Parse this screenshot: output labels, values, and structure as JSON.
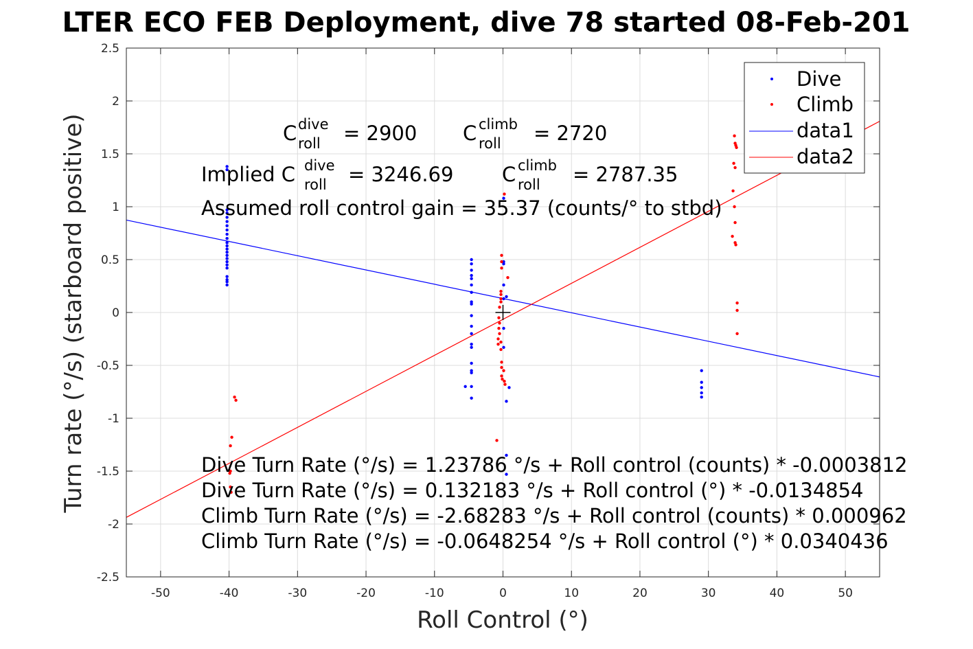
{
  "chart_data": {
    "type": "scatter",
    "title": "LTER ECO FEB Deployment, dive 78 started 08-Feb-201",
    "xlabel": "Roll Control (°)",
    "ylabel": "Turn rate (°/s) (starboard positive)",
    "xlim": [
      -55,
      55
    ],
    "ylim": [
      -2.5,
      2.5
    ],
    "xticks": [
      -50,
      -40,
      -30,
      -20,
      -10,
      0,
      10,
      20,
      30,
      40,
      50
    ],
    "yticks": [
      -2.5,
      -2,
      -1.5,
      -1,
      -0.5,
      0,
      0.5,
      1,
      1.5,
      2,
      2.5
    ],
    "xtick_labels": [
      "-50",
      "-40",
      "-30",
      "-20",
      "-10",
      "0",
      "10",
      "20",
      "30",
      "40",
      "50"
    ],
    "ytick_labels": [
      "-2.5",
      "-2",
      "-1.5",
      "-1",
      "-0.5",
      "0",
      "0.5",
      "1",
      "1.5",
      "2",
      "2.5"
    ],
    "grid": true,
    "legend_position": "top-right",
    "legend": [
      "Dive",
      "Climb",
      "data1",
      "data2"
    ],
    "series": [
      {
        "name": "Dive",
        "kind": "points",
        "color": "#0000ff",
        "points": [
          [
            -40.3,
            1.38
          ],
          [
            -40.3,
            1.35
          ],
          [
            -40.3,
            0.97
          ],
          [
            -40.3,
            0.94
          ],
          [
            -40.3,
            0.9
          ],
          [
            -40.3,
            0.86
          ],
          [
            -40.3,
            0.82
          ],
          [
            -40.3,
            0.78
          ],
          [
            -40.3,
            0.74
          ],
          [
            -40.3,
            0.7
          ],
          [
            -40.3,
            0.66
          ],
          [
            -40.3,
            0.63
          ],
          [
            -40.3,
            0.6
          ],
          [
            -40.3,
            0.57
          ],
          [
            -40.3,
            0.54
          ],
          [
            -40.3,
            0.51
          ],
          [
            -40.3,
            0.48
          ],
          [
            -40.3,
            0.45
          ],
          [
            -40.3,
            0.42
          ],
          [
            -40.3,
            0.34
          ],
          [
            -40.3,
            0.31
          ],
          [
            -40.3,
            0.29
          ],
          [
            -40.3,
            0.26
          ],
          [
            -4.6,
            0.5
          ],
          [
            -4.6,
            0.46
          ],
          [
            -4.6,
            0.4
          ],
          [
            -4.6,
            0.35
          ],
          [
            -4.6,
            0.32
          ],
          [
            -4.6,
            0.26
          ],
          [
            -4.6,
            0.19
          ],
          [
            -4.6,
            0.1
          ],
          [
            -4.6,
            0.08
          ],
          [
            -4.6,
            -0.03
          ],
          [
            -4.6,
            -0.13
          ],
          [
            -4.6,
            -0.2
          ],
          [
            -4.6,
            -0.3
          ],
          [
            -4.6,
            -0.33
          ],
          [
            -4.6,
            -0.48
          ],
          [
            -4.6,
            -0.55
          ],
          [
            -4.6,
            -0.57
          ],
          [
            -4.6,
            -0.7
          ],
          [
            -4.6,
            -0.81
          ],
          [
            -5.5,
            -0.7
          ],
          [
            0.1,
            1.08
          ],
          [
            0.1,
            0.48
          ],
          [
            0.1,
            0.46
          ],
          [
            0.1,
            0.26
          ],
          [
            0.1,
            0.13
          ],
          [
            0.1,
            -0.15
          ],
          [
            0.1,
            -0.33
          ],
          [
            0.5,
            0.15
          ],
          [
            0.5,
            -0.84
          ],
          [
            0.9,
            -0.71
          ],
          [
            0.5,
            -1.35
          ],
          [
            0.5,
            -1.53
          ],
          [
            29.0,
            -0.55
          ],
          [
            29.0,
            -0.66
          ],
          [
            29.0,
            -0.71
          ],
          [
            29.0,
            -0.76
          ],
          [
            29.0,
            -0.8
          ]
        ]
      },
      {
        "name": "Climb",
        "kind": "points",
        "color": "#ff0000",
        "points": [
          [
            -39.2,
            -0.8
          ],
          [
            -39.0,
            -0.83
          ],
          [
            -39.6,
            -1.18
          ],
          [
            -39.8,
            -1.26
          ],
          [
            -39.8,
            -1.5
          ],
          [
            -39.9,
            -1.52
          ],
          [
            -39.8,
            -1.65
          ],
          [
            -39.7,
            -1.7
          ],
          [
            -0.2,
            0.54
          ],
          [
            -0.2,
            0.48
          ],
          [
            -0.2,
            0.42
          ],
          [
            0.7,
            0.33
          ],
          [
            -0.3,
            0.2
          ],
          [
            -0.3,
            0.17
          ],
          [
            -0.3,
            0.13
          ],
          [
            -0.3,
            0.1
          ],
          [
            -0.5,
            0.05
          ],
          [
            -0.6,
            -0.05
          ],
          [
            -0.5,
            -0.1
          ],
          [
            -0.6,
            -0.15
          ],
          [
            -0.5,
            -0.2
          ],
          [
            -0.7,
            -0.25
          ],
          [
            -0.7,
            -0.3
          ],
          [
            -0.3,
            -0.28
          ],
          [
            -0.3,
            -0.35
          ],
          [
            -0.2,
            -0.47
          ],
          [
            -0.2,
            -0.52
          ],
          [
            0.1,
            -0.55
          ],
          [
            -0.2,
            -0.6
          ],
          [
            0.2,
            -0.65
          ],
          [
            0.3,
            -0.68
          ],
          [
            -0.1,
            -0.63
          ],
          [
            -0.9,
            -1.21
          ],
          [
            0.2,
            1.12
          ],
          [
            33.8,
            1.67
          ],
          [
            33.9,
            1.6
          ],
          [
            34.0,
            1.58
          ],
          [
            34.1,
            1.56
          ],
          [
            33.7,
            1.41
          ],
          [
            33.9,
            1.37
          ],
          [
            33.6,
            1.15
          ],
          [
            33.8,
            1.0
          ],
          [
            33.9,
            0.85
          ],
          [
            33.5,
            0.72
          ],
          [
            33.9,
            0.66
          ],
          [
            34.0,
            0.64
          ],
          [
            34.2,
            0.09
          ],
          [
            34.2,
            0.02
          ],
          [
            34.2,
            -0.2
          ]
        ]
      },
      {
        "name": "data1",
        "kind": "line",
        "color": "#0000ff",
        "intercept": 0.132183,
        "slope": -0.0134854
      },
      {
        "name": "data2",
        "kind": "line",
        "color": "#ff0000",
        "intercept": -0.0648254,
        "slope": 0.0340436
      }
    ],
    "marker": {
      "symbol": "+",
      "x": 0,
      "y": 0
    }
  },
  "annotations": {
    "c_roll": {
      "c": "C",
      "sub": "roll",
      "dive_sup": "dive",
      "climb_sup": "climb",
      "dive_value": "= 2900",
      "climb_value": "= 2720"
    },
    "implied": {
      "prefix": "Implied C",
      "sub": "roll",
      "dive_sup": "dive",
      "dive_value": "= 3246.69",
      "climb_c": "C",
      "climb_sup": "climb",
      "climb_value": "= 2787.35"
    },
    "gain": "Assumed roll control gain = 35.37 (counts/° to stbd)",
    "equations": [
      "Dive Turn Rate (°/s) = 1.23786 °/s + Roll control (counts) * -0.0003812",
      "Dive Turn Rate (°/s) = 0.132183 °/s + Roll control (°) * -0.0134854",
      "Climb Turn Rate (°/s) = -2.68283 °/s + Roll control (counts) * 0.000962",
      "Climb Turn Rate (°/s) = -0.0648254 °/s + Roll control (°) * 0.0340436"
    ]
  }
}
